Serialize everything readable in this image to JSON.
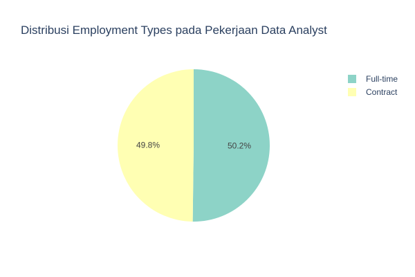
{
  "chart_data": {
    "type": "pie",
    "title": "Distribusi Employment Types pada Pekerjaan Data Analyst",
    "legend_position": "top-right",
    "slices": [
      {
        "label": "Full-time",
        "value": 50.2,
        "display": "50.2%",
        "color": "#8dd3c7"
      },
      {
        "label": "Contract",
        "value": 49.8,
        "display": "49.8%",
        "color": "#ffffb3"
      }
    ]
  }
}
